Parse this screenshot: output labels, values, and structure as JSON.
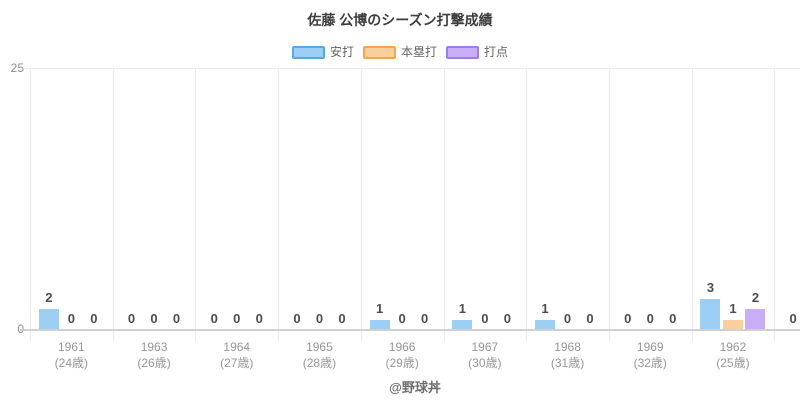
{
  "title": "佐藤 公博のシーズン打撃成績",
  "watermark": "@野球丼",
  "y_axis": {
    "max_label": "25",
    "min_label": "0"
  },
  "legend": {
    "items": [
      {
        "label": "安打",
        "fill": "#9DCEF4",
        "border": "#55A9EA"
      },
      {
        "label": "本塁打",
        "fill": "#FBCF9D",
        "border": "#F9A44A"
      },
      {
        "label": "打点",
        "fill": "#C9ADF6",
        "border": "#9D7BEF"
      }
    ]
  },
  "chart_data": {
    "type": "bar",
    "title": "佐藤 公博のシーズン打撃成績",
    "categories": [
      {
        "year": "1961",
        "age": "(24歳)"
      },
      {
        "year": "1963",
        "age": "(26歳)"
      },
      {
        "year": "1964",
        "age": "(27歳)"
      },
      {
        "year": "1965",
        "age": "(28歳)"
      },
      {
        "year": "1966",
        "age": "(29歳)"
      },
      {
        "year": "1967",
        "age": "(30歳)"
      },
      {
        "year": "1968",
        "age": "(31歳)"
      },
      {
        "year": "1969",
        "age": "(32歳)"
      },
      {
        "year": "1962",
        "age": "(25歳)"
      }
    ],
    "series": [
      {
        "name": "安打",
        "key": "hits",
        "color": "#9DCEF4",
        "border": "#55A9EA",
        "values": [
          2,
          0,
          0,
          0,
          1,
          1,
          1,
          0,
          3
        ]
      },
      {
        "name": "本塁打",
        "key": "home-runs",
        "color": "#FBCF9D",
        "border": "#F9A44A",
        "values": [
          0,
          0,
          0,
          0,
          0,
          0,
          0,
          0,
          1
        ]
      },
      {
        "name": "打点",
        "key": "rbi",
        "color": "#C9ADF6",
        "border": "#9D7BEF",
        "values": [
          0,
          0,
          0,
          0,
          0,
          0,
          0,
          0,
          2
        ]
      }
    ],
    "ylim": [
      0,
      25
    ],
    "y_ticks": [
      0,
      25
    ],
    "value_labels": true,
    "grid": "vertical-category-separators",
    "legend_position": "top-center",
    "clipped_right_partial": {
      "visible_value_label": "0"
    }
  }
}
